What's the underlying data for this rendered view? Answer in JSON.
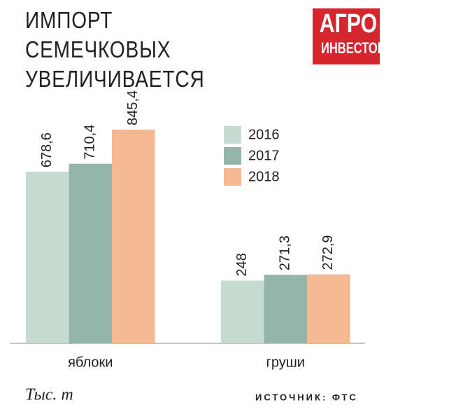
{
  "logo": {
    "line1": "АГРО",
    "line2": "ИНВЕСТОР"
  },
  "chart_data": {
    "type": "bar",
    "title": "ИМПОРТ СЕМЕЧКОВЫХ УВЕЛИЧИВАЕТСЯ",
    "categories": [
      "яблоки",
      "груши"
    ],
    "series": [
      {
        "name": "2016",
        "color": "#c6dad2",
        "values": [
          678.6,
          248
        ],
        "value_labels": [
          "678,6",
          "248"
        ]
      },
      {
        "name": "2017",
        "color": "#94b6aa",
        "values": [
          710.4,
          271.3
        ],
        "value_labels": [
          "710,4",
          "271,3"
        ]
      },
      {
        "name": "2018",
        "color": "#f5b991",
        "values": [
          845.4,
          272.9
        ],
        "value_labels": [
          "845,4",
          "272,9"
        ]
      }
    ],
    "unit": "Тыс. т",
    "source": "ИСТОЧНИК: ФТС"
  }
}
